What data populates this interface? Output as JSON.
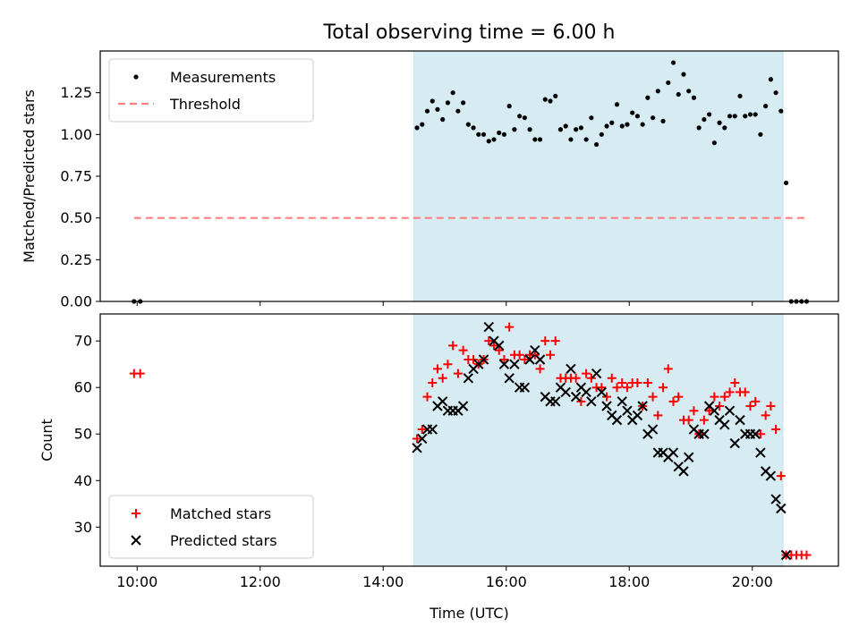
{
  "chart_data": [
    {
      "type": "scatter",
      "title": "Total observing time = 6.00 h",
      "xlabel": "",
      "ylabel": "Matched/Predicted stars",
      "xlim": [
        "09:24",
        "21:24"
      ],
      "ylim": [
        0,
        1.5
      ],
      "x_ticks": [
        "10:00",
        "12:00",
        "14:00",
        "16:00",
        "18:00",
        "20:00"
      ],
      "y_ticks": [
        "0.00",
        "0.25",
        "0.50",
        "0.75",
        "1.00",
        "1.25"
      ],
      "y_tick_values": [
        0,
        0.25,
        0.5,
        0.75,
        1.0,
        1.25
      ],
      "grid": false,
      "legend_position": "top-left",
      "shaded_interval": {
        "start": "14:30",
        "end": "20:30",
        "color": "#add8e6"
      },
      "series": [
        {
          "name": "Measurements",
          "marker": "dot",
          "color": "#000000",
          "x": [
            "09:57",
            "10:03",
            "14:33",
            "14:38",
            "14:43",
            "14:48",
            "14:53",
            "14:58",
            "15:03",
            "15:08",
            "15:13",
            "15:18",
            "15:23",
            "15:28",
            "15:33",
            "15:38",
            "15:43",
            "15:48",
            "15:53",
            "15:58",
            "16:03",
            "16:08",
            "16:13",
            "16:18",
            "16:23",
            "16:28",
            "16:33",
            "16:38",
            "16:43",
            "16:48",
            "16:53",
            "16:58",
            "17:03",
            "17:08",
            "17:13",
            "17:18",
            "17:23",
            "17:28",
            "17:33",
            "17:38",
            "17:43",
            "17:48",
            "17:53",
            "17:58",
            "18:03",
            "18:08",
            "18:13",
            "18:18",
            "18:23",
            "18:28",
            "18:33",
            "18:38",
            "18:43",
            "18:48",
            "18:53",
            "18:58",
            "19:03",
            "19:08",
            "19:13",
            "19:18",
            "19:23",
            "19:28",
            "19:33",
            "19:38",
            "19:43",
            "19:48",
            "19:53",
            "19:58",
            "20:03",
            "20:08",
            "20:13",
            "20:18",
            "20:23",
            "20:28",
            "20:33",
            "20:38",
            "20:43",
            "20:48",
            "20:53"
          ],
          "y": [
            0,
            0,
            1.04,
            1.06,
            1.14,
            1.2,
            1.15,
            1.09,
            1.19,
            1.25,
            1.14,
            1.19,
            1.06,
            1.04,
            1.0,
            1.0,
            0.96,
            0.97,
            1.01,
            1.0,
            1.17,
            1.03,
            1.11,
            1.1,
            1.03,
            0.97,
            0.97,
            1.21,
            1.2,
            1.23,
            1.03,
            1.05,
            0.97,
            1.03,
            1.04,
            0.97,
            1.1,
            0.94,
            1.0,
            1.05,
            1.07,
            1.18,
            1.05,
            1.06,
            1.13,
            1.11,
            1.06,
            1.22,
            1.1,
            1.26,
            1.08,
            1.31,
            1.43,
            1.24,
            1.36,
            1.26,
            1.22,
            1.04,
            1.09,
            1.12,
            0.95,
            1.07,
            1.04,
            1.11,
            1.11,
            1.23,
            1.11,
            1.12,
            1.12,
            1.0,
            1.17,
            1.33,
            1.25,
            1.14,
            0.71,
            0,
            0,
            0,
            0
          ]
        },
        {
          "name": "Threshold",
          "marker": "dashed-line",
          "color": "#ff8080",
          "x": [
            "09:57",
            "20:53"
          ],
          "y": [
            0.5,
            0.5
          ]
        }
      ]
    },
    {
      "type": "scatter",
      "title": "",
      "xlabel": "Time (UTC)",
      "ylabel": "Count",
      "xlim": [
        "09:24",
        "21:24"
      ],
      "ylim": [
        21.6,
        75.8
      ],
      "x_ticks": [
        "10:00",
        "12:00",
        "14:00",
        "16:00",
        "18:00",
        "20:00"
      ],
      "y_ticks": [
        "30",
        "40",
        "50",
        "60",
        "70"
      ],
      "y_tick_values": [
        30,
        40,
        50,
        60,
        70
      ],
      "grid": false,
      "legend_position": "bottom-left",
      "shaded_interval": {
        "start": "14:30",
        "end": "20:30",
        "color": "#add8e6"
      },
      "series": [
        {
          "name": "Matched stars",
          "marker": "plus",
          "color": "#ff0000",
          "x": [
            "09:57",
            "10:03",
            "14:33",
            "14:38",
            "14:43",
            "14:48",
            "14:53",
            "14:58",
            "15:03",
            "15:08",
            "15:13",
            "15:18",
            "15:23",
            "15:28",
            "15:33",
            "15:38",
            "15:43",
            "15:48",
            "15:53",
            "15:58",
            "16:03",
            "16:08",
            "16:13",
            "16:18",
            "16:23",
            "16:28",
            "16:33",
            "16:38",
            "16:43",
            "16:48",
            "16:53",
            "16:58",
            "17:03",
            "17:08",
            "17:13",
            "17:18",
            "17:23",
            "17:28",
            "17:33",
            "17:38",
            "17:43",
            "17:48",
            "17:53",
            "17:58",
            "18:03",
            "18:08",
            "18:13",
            "18:18",
            "18:23",
            "18:28",
            "18:33",
            "18:38",
            "18:43",
            "18:48",
            "18:53",
            "18:58",
            "19:03",
            "19:08",
            "19:13",
            "19:18",
            "19:23",
            "19:28",
            "19:33",
            "19:38",
            "19:43",
            "19:48",
            "19:53",
            "19:58",
            "20:03",
            "20:08",
            "20:13",
            "20:18",
            "20:23",
            "20:28",
            "20:33",
            "20:38",
            "20:43",
            "20:48",
            "20:53"
          ],
          "y": [
            63,
            63,
            49,
            51,
            58,
            61,
            64,
            62,
            65,
            69,
            63,
            68,
            66,
            66,
            65,
            66,
            70,
            69,
            68,
            66,
            73,
            67,
            67,
            66,
            67,
            67,
            64,
            70,
            67,
            70,
            62,
            62,
            62,
            62,
            57,
            63,
            62,
            60,
            60,
            58,
            62,
            60,
            61,
            60,
            61,
            61,
            56,
            61,
            58,
            54,
            60,
            64,
            57,
            58,
            53,
            53,
            55,
            50,
            53,
            55,
            58,
            56,
            58,
            59,
            61,
            59,
            59,
            56,
            57,
            50,
            54,
            56,
            51,
            41,
            24,
            24,
            24,
            24,
            24
          ],
          "value_note": ""
        },
        {
          "name": "Predicted stars",
          "marker": "x",
          "color": "#000000",
          "x": [
            "14:33",
            "14:38",
            "14:43",
            "14:48",
            "14:53",
            "14:58",
            "15:03",
            "15:08",
            "15:13",
            "15:18",
            "15:23",
            "15:28",
            "15:33",
            "15:38",
            "15:43",
            "15:48",
            "15:53",
            "15:58",
            "16:03",
            "16:08",
            "16:13",
            "16:18",
            "16:23",
            "16:28",
            "16:33",
            "16:38",
            "16:43",
            "16:48",
            "16:53",
            "16:58",
            "17:03",
            "17:08",
            "17:13",
            "17:18",
            "17:23",
            "17:28",
            "17:33",
            "17:38",
            "17:43",
            "17:48",
            "17:53",
            "17:58",
            "18:03",
            "18:08",
            "18:13",
            "18:18",
            "18:23",
            "18:28",
            "18:33",
            "18:38",
            "18:43",
            "18:48",
            "18:53",
            "18:58",
            "19:03",
            "19:08",
            "19:13",
            "19:18",
            "19:23",
            "19:28",
            "19:33",
            "19:38",
            "19:43",
            "19:48",
            "19:53",
            "19:58",
            "20:03",
            "20:08",
            "20:13",
            "20:18",
            "20:23",
            "20:28",
            "20:33"
          ],
          "y": [
            47,
            49,
            51,
            51,
            56,
            57,
            55,
            55,
            55,
            56,
            62,
            64,
            65,
            66,
            73,
            70,
            69,
            65,
            62,
            65,
            60,
            60,
            66,
            68,
            66,
            58,
            57,
            57,
            60,
            59,
            64,
            58,
            60,
            59,
            57,
            63,
            59,
            56,
            54,
            53,
            57,
            55,
            53,
            54,
            56,
            50,
            51,
            46,
            46,
            45,
            46,
            43,
            42,
            45,
            51,
            50,
            50,
            56,
            55,
            53,
            52,
            55,
            48,
            53,
            50,
            50,
            50,
            46,
            42,
            41,
            36,
            34,
            24
          ]
        }
      ]
    }
  ]
}
